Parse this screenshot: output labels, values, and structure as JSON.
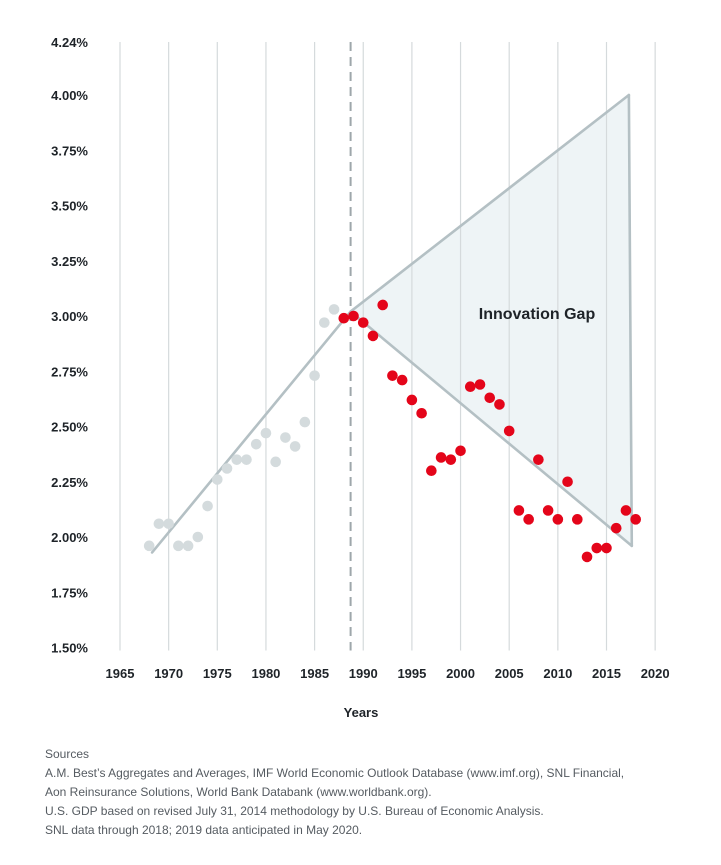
{
  "chart_data": {
    "type": "scatter",
    "xlabel": "Years",
    "ylabel": "",
    "xlim": [
      1960,
      2022
    ],
    "ylim": [
      1.5,
      4.24
    ],
    "x_ticks": [
      1965,
      1970,
      1975,
      1980,
      1985,
      1990,
      1995,
      2000,
      2005,
      2010,
      2015,
      2020
    ],
    "y_ticks": [
      {
        "value": 1.5,
        "label": "1.50%"
      },
      {
        "value": 1.75,
        "label": "1.75%"
      },
      {
        "value": 2.0,
        "label": "2.00%"
      },
      {
        "value": 2.25,
        "label": "2.25%"
      },
      {
        "value": 2.5,
        "label": "2.50%"
      },
      {
        "value": 2.75,
        "label": "2.75%"
      },
      {
        "value": 3.0,
        "label": "3.00%"
      },
      {
        "value": 3.25,
        "label": "3.25%"
      },
      {
        "value": 3.5,
        "label": "3.50%"
      },
      {
        "value": 3.75,
        "label": "3.75%"
      },
      {
        "value": 4.0,
        "label": "4.00%"
      },
      {
        "value": 4.24,
        "label": "4.24%"
      }
    ],
    "grid": "vertical",
    "divider_year": 1988.7,
    "annotation": "Innovation Gap",
    "series": [
      {
        "color": "#d4dbdd",
        "points": [
          {
            "x": 1968,
            "y": 1.96
          },
          {
            "x": 1969,
            "y": 2.06
          },
          {
            "x": 1970,
            "y": 2.06
          },
          {
            "x": 1971,
            "y": 1.96
          },
          {
            "x": 1972,
            "y": 1.96
          },
          {
            "x": 1973,
            "y": 2.0
          },
          {
            "x": 1974,
            "y": 2.14
          },
          {
            "x": 1975,
            "y": 2.26
          },
          {
            "x": 1976,
            "y": 2.31
          },
          {
            "x": 1977,
            "y": 2.35
          },
          {
            "x": 1978,
            "y": 2.35
          },
          {
            "x": 1979,
            "y": 2.42
          },
          {
            "x": 1980,
            "y": 2.47
          },
          {
            "x": 1981,
            "y": 2.34
          },
          {
            "x": 1982,
            "y": 2.45
          },
          {
            "x": 1983,
            "y": 2.41
          },
          {
            "x": 1984,
            "y": 2.52
          },
          {
            "x": 1985,
            "y": 2.73
          },
          {
            "x": 1986,
            "y": 2.97
          },
          {
            "x": 1987,
            "y": 3.03
          }
        ]
      },
      {
        "color": "#e4051a",
        "points": [
          {
            "x": 1988,
            "y": 2.99
          },
          {
            "x": 1989,
            "y": 3.0
          },
          {
            "x": 1990,
            "y": 2.97
          },
          {
            "x": 1991,
            "y": 2.91
          },
          {
            "x": 1992,
            "y": 3.05
          },
          {
            "x": 1993,
            "y": 2.73
          },
          {
            "x": 1994,
            "y": 2.71
          },
          {
            "x": 1995,
            "y": 2.62
          },
          {
            "x": 1996,
            "y": 2.56
          },
          {
            "x": 1997,
            "y": 2.3
          },
          {
            "x": 1998,
            "y": 2.36
          },
          {
            "x": 1999,
            "y": 2.35
          },
          {
            "x": 2000,
            "y": 2.39
          },
          {
            "x": 2001,
            "y": 2.68
          },
          {
            "x": 2002,
            "y": 2.69
          },
          {
            "x": 2003,
            "y": 2.63
          },
          {
            "x": 2004,
            "y": 2.6
          },
          {
            "x": 2005,
            "y": 2.48
          },
          {
            "x": 2006,
            "y": 2.12
          },
          {
            "x": 2007,
            "y": 2.08
          },
          {
            "x": 2008,
            "y": 2.35
          },
          {
            "x": 2009,
            "y": 2.12
          },
          {
            "x": 2010,
            "y": 2.08
          },
          {
            "x": 2011,
            "y": 2.25
          },
          {
            "x": 2012,
            "y": 2.08
          },
          {
            "x": 2013,
            "y": 1.91
          },
          {
            "x": 2014,
            "y": 1.95
          },
          {
            "x": 2015,
            "y": 1.95
          },
          {
            "x": 2016,
            "y": 2.04
          },
          {
            "x": 2017,
            "y": 2.12
          },
          {
            "x": 2018,
            "y": 2.08
          }
        ]
      }
    ],
    "trend_lines": [
      {
        "points": [
          {
            "x": 1968.3,
            "y": 1.93
          },
          {
            "x": 1988.7,
            "y": 3.02
          }
        ]
      },
      {
        "points": [
          {
            "x": 1988.7,
            "y": 3.02
          },
          {
            "x": 2017.6,
            "y": 1.96
          }
        ]
      },
      {
        "points": [
          {
            "x": 1988.7,
            "y": 3.02
          },
          {
            "x": 2017.3,
            "y": 4.0
          }
        ]
      },
      {
        "points": [
          {
            "x": 2017.3,
            "y": 4.0
          },
          {
            "x": 2017.6,
            "y": 1.96
          }
        ]
      }
    ],
    "gap_region": {
      "color": "#eef4f6",
      "points": [
        {
          "x": 1988.7,
          "y": 3.02
        },
        {
          "x": 2017.3,
          "y": 4.0
        },
        {
          "x": 2017.6,
          "y": 1.96
        }
      ]
    },
    "colors": {
      "gridline": "#d5dadc",
      "trend": "#b4c0c4",
      "divider": "#9ea7ab",
      "axis_text": "#1e2328"
    }
  },
  "sources": {
    "heading": "Sources",
    "lines": [
      "A.M. Best’s Aggregates and Averages, IMF World Economic Outlook Database (www.imf.org), SNL Financial,",
      "Aon Reinsurance Solutions, World Bank Databank (www.worldbank.org).",
      "U.S. GDP based on revised July 31, 2014 methodology by U.S. Bureau of Economic Analysis.",
      "SNL data through 2018; 2019 data anticipated in May 2020."
    ]
  }
}
